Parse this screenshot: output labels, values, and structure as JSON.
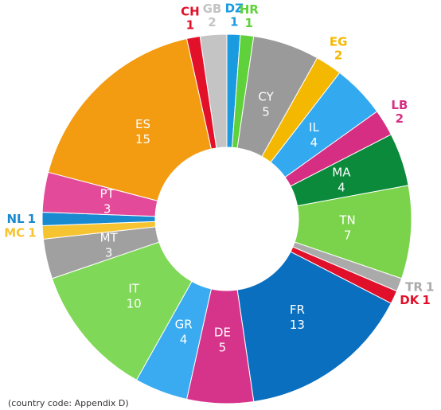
{
  "chart_data": {
    "type": "donut",
    "note": "(country code: Appendix D)",
    "categories": [
      "DZ",
      "HR",
      "CY",
      "EG",
      "IL",
      "LB",
      "MA",
      "TN",
      "TR",
      "DK",
      "FR",
      "DE",
      "GR",
      "IT",
      "MT",
      "MC",
      "NL",
      "PT",
      "ES",
      "CH",
      "GB"
    ],
    "values": [
      1,
      1,
      5,
      2,
      4,
      2,
      4,
      7,
      1,
      1,
      13,
      5,
      4,
      10,
      3,
      1,
      1,
      3,
      15,
      1,
      2
    ],
    "colors": [
      "#1a9be0",
      "#5fd13a",
      "#9a9a9a",
      "#f5b800",
      "#33aaf0",
      "#d62e82",
      "#0a8a3a",
      "#7ad34a",
      "#aaaaaa",
      "#e0102a",
      "#0a6fbf",
      "#d6338a",
      "#3aabf0",
      "#80d858",
      "#a0a0a0",
      "#f7c431",
      "#1a8ad0",
      "#e34a9a",
      "#f39c12",
      "#e3102a",
      "#c4c4c4"
    ]
  }
}
